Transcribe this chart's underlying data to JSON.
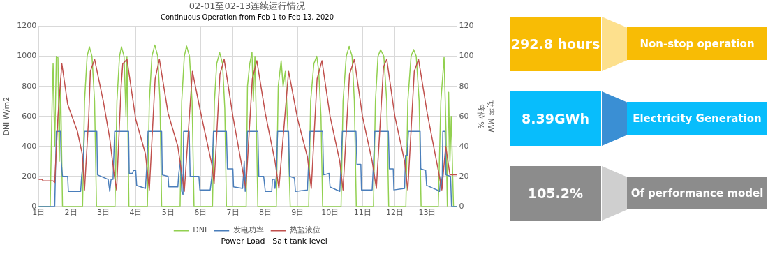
{
  "chart_data": [
    {
      "type": "line",
      "title": "02-01至02-13连续运行情况",
      "subtitle": "Continuous Operation from Feb 1 to Feb 13, 2020",
      "ylabel": "DNI W/m2",
      "y2label": "功率 MW\n液位 %",
      "xlim": [
        1,
        13.92
      ],
      "xticks": [
        {
          "value": 1,
          "label": "1日"
        },
        {
          "value": 2,
          "label": "2日"
        },
        {
          "value": 3,
          "label": "3日"
        },
        {
          "value": 4,
          "label": "4日"
        },
        {
          "value": 5,
          "label": "5日"
        },
        {
          "value": 6,
          "label": "6日"
        },
        {
          "value": 7,
          "label": "7日"
        },
        {
          "value": 8,
          "label": "8日"
        },
        {
          "value": 9,
          "label": "9日"
        },
        {
          "value": 10,
          "label": "10日"
        },
        {
          "value": 11,
          "label": "11日"
        },
        {
          "value": 12,
          "label": "12日"
        },
        {
          "value": 13,
          "label": "13日"
        }
      ],
      "ylim": [
        0,
        1200
      ],
      "yticks": [
        0,
        200,
        400,
        600,
        800,
        1000,
        1200
      ],
      "y2lim": [
        0,
        120
      ],
      "y2ticks": [
        0,
        20,
        40,
        60,
        80,
        100,
        120
      ],
      "grid": true,
      "legend": "bottom",
      "marker": "none",
      "line_style": "solid",
      "annotations": [
        "Power Load",
        "Salt tank level"
      ],
      "series": [
        {
          "name": "DNI",
          "color": "#92d050",
          "x": [
            1.0,
            1.36,
            1.42,
            1.45,
            1.5,
            1.55,
            1.6,
            1.64,
            1.68,
            1.74,
            2.36,
            2.42,
            2.5,
            2.57,
            2.65,
            2.73,
            2.79,
            3.36,
            3.42,
            3.5,
            3.56,
            3.64,
            3.7,
            3.73,
            3.79,
            4.36,
            4.42,
            4.5,
            4.59,
            4.68,
            4.75,
            4.8,
            5.37,
            5.42,
            5.5,
            5.57,
            5.66,
            5.74,
            5.8,
            6.37,
            6.43,
            6.5,
            6.59,
            6.68,
            6.75,
            6.8,
            7.41,
            7.45,
            7.52,
            7.59,
            7.63,
            7.68,
            7.72,
            7.77,
            8.34,
            8.4,
            8.49,
            8.55,
            8.62,
            8.7,
            8.77,
            9.34,
            9.4,
            9.5,
            9.59,
            9.65,
            9.72,
            9.77,
            10.34,
            10.4,
            10.5,
            10.59,
            10.68,
            10.75,
            10.81,
            11.34,
            11.4,
            11.48,
            11.56,
            11.66,
            11.75,
            11.81,
            12.34,
            12.4,
            12.5,
            12.58,
            12.66,
            12.75,
            12.81,
            13.34,
            13.42,
            13.52,
            13.58,
            13.62,
            13.66,
            13.7,
            13.74,
            13.81,
            13.92
          ],
          "values": [
            0,
            0,
            700,
            950,
            400,
            1000,
            990,
            300,
            850,
            0,
            0,
            700,
            1000,
            1063,
            1000,
            700,
            0,
            0,
            700,
            1000,
            1063,
            1000,
            600,
            1000,
            0,
            0,
            700,
            1000,
            1075,
            1000,
            700,
            0,
            0,
            700,
            1000,
            1068,
            1000,
            700,
            0,
            0,
            700,
            950,
            1025,
            950,
            650,
            0,
            0,
            800,
            950,
            1025,
            700,
            1000,
            600,
            0,
            0,
            800,
            970,
            800,
            900,
            500,
            0,
            0,
            700,
            950,
            1000,
            900,
            600,
            0,
            0,
            700,
            1000,
            1066,
            1000,
            700,
            0,
            0,
            700,
            1000,
            1043,
            1000,
            700,
            0,
            0,
            700,
            1000,
            1045,
            1000,
            700,
            0,
            0,
            700,
            993,
            500,
            0,
            760,
            300,
            600,
            0,
            0
          ]
        },
        {
          "name": "发电功率",
          "color": "#4a7ebb",
          "axis": "y2",
          "x": [
            1.0,
            1.5,
            1.55,
            1.68,
            1.7,
            1.74,
            1.9,
            1.92,
            2.3,
            2.33,
            2.38,
            2.42,
            2.8,
            2.82,
            3.15,
            3.2,
            3.24,
            3.3,
            3.35,
            3.78,
            3.8,
            3.9,
            3.93,
            4.0,
            4.03,
            4.3,
            4.35,
            4.38,
            4.8,
            4.82,
            5.0,
            5.02,
            5.3,
            5.33,
            5.38,
            5.42,
            5.46,
            5.48,
            5.65,
            5.68,
            5.95,
            5.98,
            6.3,
            6.35,
            6.4,
            6.8,
            6.83,
            7.0,
            7.02,
            7.3,
            7.35,
            7.38,
            7.42,
            7.45,
            7.77,
            7.8,
            7.95,
            8.0,
            8.2,
            8.22,
            8.28,
            8.3,
            8.34,
            8.38,
            8.72,
            8.75,
            8.9,
            8.93,
            9.3,
            9.34,
            9.38,
            9.77,
            9.8,
            9.97,
            10.0,
            10.3,
            10.34,
            10.38,
            10.8,
            10.83,
            10.95,
            10.97,
            11.3,
            11.34,
            11.38,
            11.8,
            11.83,
            11.95,
            11.97,
            12.3,
            12.33,
            12.38,
            12.42,
            12.78,
            12.8,
            12.95,
            12.98,
            13.3,
            13.38,
            13.42,
            13.46,
            13.48,
            13.55,
            13.58,
            13.72,
            13.75,
            13.92
          ],
          "values": [
            0,
            0,
            50,
            50,
            30,
            20,
            20,
            10,
            10,
            20,
            30,
            50,
            50,
            21,
            18,
            10,
            18,
            18,
            50,
            50,
            22,
            22,
            24,
            24,
            14,
            12,
            30,
            50,
            50,
            21,
            20,
            13,
            13,
            22,
            30,
            10,
            8,
            50,
            50,
            20,
            20,
            11,
            11,
            20,
            50,
            50,
            25,
            25,
            13,
            12,
            30,
            10,
            30,
            50,
            50,
            20,
            20,
            10,
            10,
            18,
            18,
            12,
            20,
            50,
            50,
            20,
            19,
            10,
            11,
            30,
            50,
            50,
            21,
            22,
            13,
            10,
            28,
            50,
            50,
            28,
            28,
            11,
            11,
            28,
            50,
            50,
            25,
            25,
            11,
            12,
            34,
            34,
            50,
            50,
            25,
            24,
            14,
            11,
            10,
            20,
            12,
            50,
            50,
            21,
            20,
            0,
            0
          ]
        },
        {
          "name": "热盐液位",
          "color": "#c0504d",
          "axis": "y2",
          "x": [
            1.0,
            1.1,
            1.15,
            1.45,
            1.5,
            1.6,
            1.72,
            1.9,
            2.2,
            2.35,
            2.42,
            2.55,
            2.6,
            2.73,
            3.0,
            3.2,
            3.33,
            3.41,
            3.55,
            3.6,
            3.73,
            4.0,
            4.3,
            4.42,
            4.6,
            4.73,
            5.0,
            5.3,
            5.5,
            5.75,
            6.0,
            6.35,
            6.42,
            6.6,
            6.73,
            7.0,
            7.4,
            7.6,
            7.74,
            8.0,
            8.3,
            8.42,
            8.72,
            9.0,
            9.3,
            9.42,
            9.6,
            9.75,
            10.0,
            10.3,
            10.4,
            10.6,
            10.75,
            11.0,
            11.3,
            11.43,
            11.65,
            11.75,
            12.0,
            12.3,
            12.4,
            12.6,
            12.73,
            13.0,
            13.35,
            13.45,
            13.57,
            13.7,
            13.92
          ],
          "values": [
            18,
            18,
            17,
            17,
            16,
            60,
            95,
            68,
            50,
            35,
            11,
            60,
            90,
            98,
            70,
            45,
            22,
            11,
            80,
            95,
            98,
            58,
            35,
            11,
            85,
            98,
            62,
            40,
            10,
            90,
            63,
            28,
            15,
            88,
            98,
            60,
            12,
            85,
            97,
            62,
            30,
            12,
            90,
            58,
            33,
            12,
            85,
            97,
            60,
            30,
            11,
            88,
            98,
            60,
            30,
            12,
            93,
            98,
            60,
            30,
            11,
            90,
            98,
            62,
            23,
            11,
            40,
            21,
            21
          ]
        }
      ]
    },
    {
      "type": "other",
      "annotations": [
        "292.8 hours",
        "Non-stop operation",
        "8.39GWh",
        "Electricity Generation",
        "105.2%",
        "Of performance model"
      ],
      "colors": [
        "#f8bc05",
        "#08bdfc",
        "#8c8c8c"
      ]
    }
  ]
}
